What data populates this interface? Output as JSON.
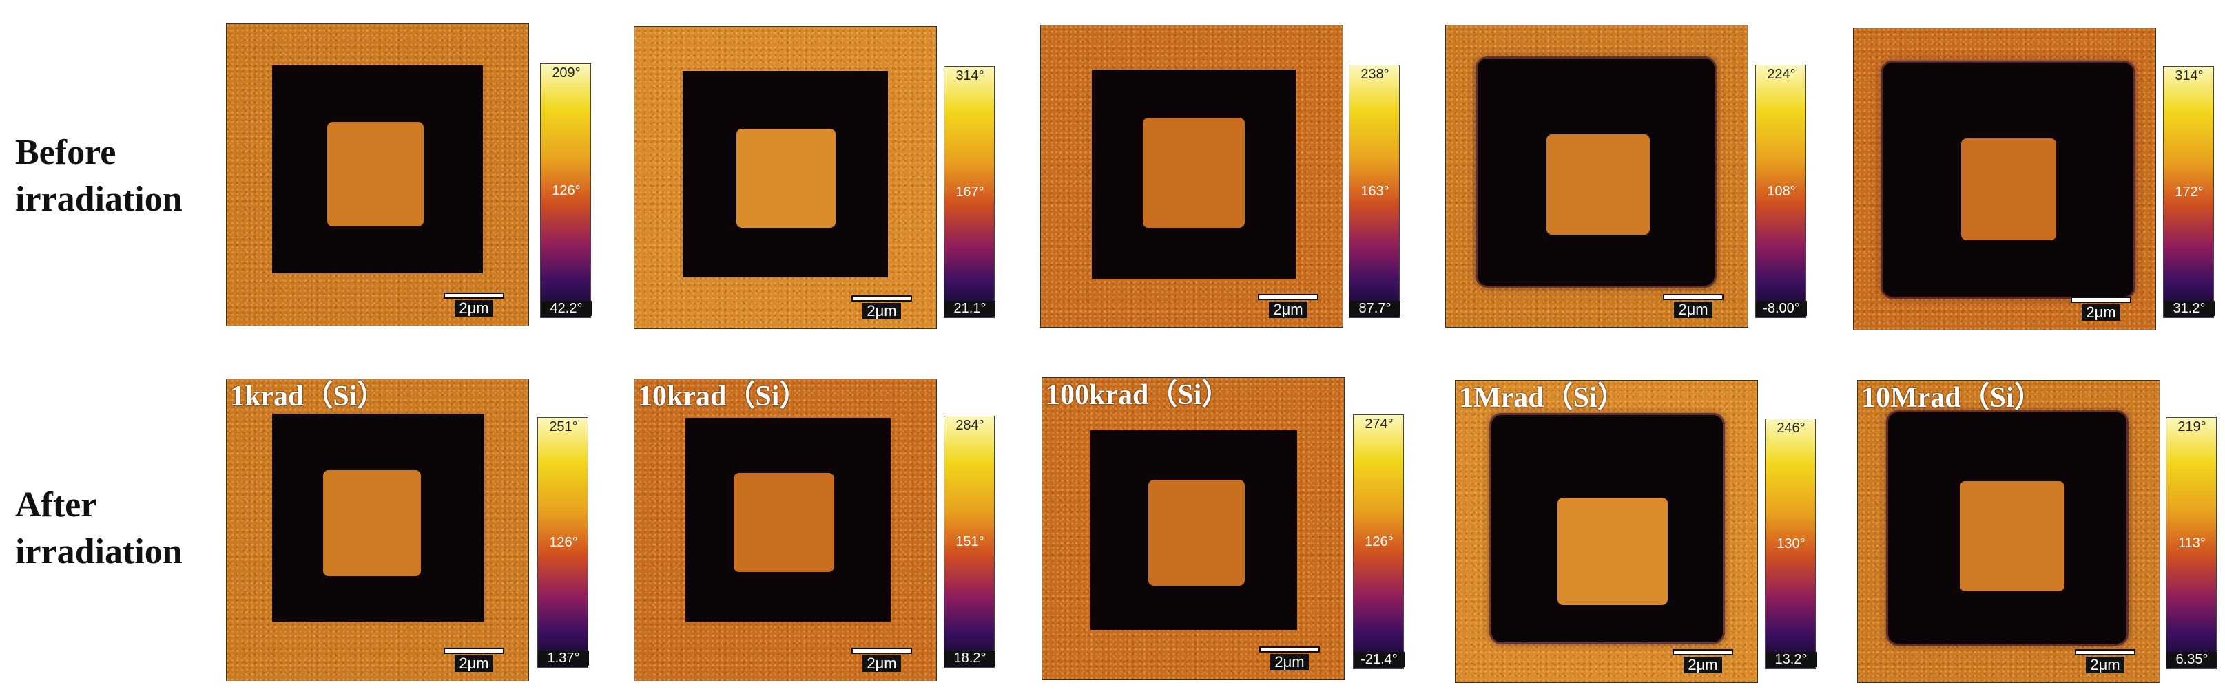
{
  "rows": [
    {
      "label_line1": "Before",
      "label_line2": "irradiation"
    },
    {
      "label_line1": "After",
      "label_line2": "irradiation"
    }
  ],
  "scale_bar": "2μm",
  "before": [
    {
      "max": "209°",
      "mid": "126°",
      "min": "42.2°"
    },
    {
      "max": "314°",
      "mid": "167°",
      "min": "21.1°"
    },
    {
      "max": "238°",
      "mid": "163°",
      "min": "87.7°"
    },
    {
      "max": "224°",
      "mid": "108°",
      "min": "-8.00°"
    },
    {
      "max": "314°",
      "mid": "172°",
      "min": "31.2°"
    }
  ],
  "after": [
    {
      "dose": "1krad（Si）",
      "max": "251°",
      "mid": "126°",
      "min": "1.37°"
    },
    {
      "dose": "10krad（Si）",
      "max": "284°",
      "mid": "151°",
      "min": "18.2°"
    },
    {
      "dose": "100krad（Si）",
      "max": "274°",
      "mid": "126°",
      "min": "-21.4°"
    },
    {
      "dose": "1Mrad（Si）",
      "max": "246°",
      "mid": "130°",
      "min": "13.2°"
    },
    {
      "dose": "10Mrad（Si）",
      "max": "219°",
      "mid": "113°",
      "min": "6.35°"
    }
  ]
}
